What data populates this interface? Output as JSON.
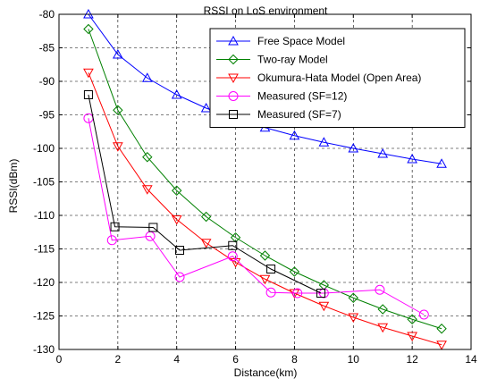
{
  "chart_data": {
    "type": "line",
    "title": "RSSI on LoS environment",
    "xlabel": "Distance(km)",
    "ylabel": "RSSI(dBm)",
    "xlim": [
      0,
      14
    ],
    "ylim": [
      -130,
      -80
    ],
    "xticks": [
      0,
      2,
      4,
      6,
      8,
      10,
      12,
      14
    ],
    "yticks": [
      -80,
      -85,
      -90,
      -95,
      -100,
      -105,
      -110,
      -115,
      -120,
      -125,
      -130
    ],
    "grid": true,
    "legend_position": "top-right",
    "series": [
      {
        "name": "Free Space Model",
        "color": "#0000ff",
        "marker": "triangle-up",
        "x": [
          1,
          2,
          3,
          4,
          5,
          6,
          7,
          8,
          9,
          10,
          11,
          12,
          13
        ],
        "y": [
          -80.0,
          -86.0,
          -89.5,
          -92.0,
          -94.0,
          -95.6,
          -96.9,
          -98.1,
          -99.1,
          -100.0,
          -100.8,
          -101.6,
          -102.3
        ]
      },
      {
        "name": "Two-ray Model",
        "color": "#008000",
        "marker": "diamond",
        "x": [
          1,
          2,
          3,
          4,
          5,
          6,
          7,
          8,
          9,
          10,
          11,
          12,
          13
        ],
        "y": [
          -82.2,
          -94.3,
          -101.3,
          -106.3,
          -110.2,
          -113.3,
          -116.0,
          -118.4,
          -120.4,
          -122.3,
          -124.0,
          -125.5,
          -126.9
        ]
      },
      {
        "name": "Okumura-Hata Model (Open Area)",
        "color": "#ff0000",
        "marker": "triangle-down",
        "x": [
          1,
          2,
          3,
          4,
          5,
          6,
          7,
          8,
          9,
          10,
          11,
          12,
          13
        ],
        "y": [
          -88.7,
          -99.7,
          -106.1,
          -110.6,
          -114.1,
          -117.0,
          -119.5,
          -121.6,
          -123.5,
          -125.2,
          -126.7,
          -128.0,
          -129.3
        ]
      },
      {
        "name": "Measured (SF=12)",
        "color": "#ff00ff",
        "marker": "circle",
        "x": [
          1.0,
          1.8,
          3.1,
          4.1,
          5.9,
          7.2,
          8.1,
          9.0,
          10.9,
          12.4
        ],
        "y": [
          -95.5,
          -113.7,
          -113.1,
          -119.2,
          -116.1,
          -121.5,
          -121.6,
          -121.6,
          -121.1,
          -124.8
        ]
      },
      {
        "name": "Measured (SF=7)",
        "color": "#000000",
        "marker": "square",
        "x": [
          1.0,
          1.9,
          3.2,
          4.1,
          5.9,
          7.2,
          8.9
        ],
        "y": [
          -92.0,
          -111.7,
          -111.8,
          -115.2,
          -114.5,
          -118.0,
          -121.6
        ]
      }
    ]
  }
}
